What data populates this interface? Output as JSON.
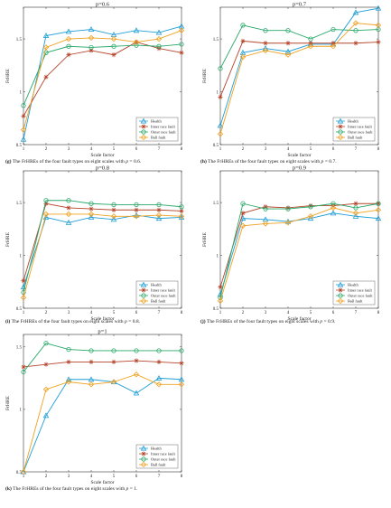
{
  "styles": {
    "colors": {
      "Health": "#1f9ed6",
      "Inner race fault": "#b5442a",
      "Outer race fault": "#2aa86a",
      "Ball fault": "#f0a020"
    },
    "markers": {
      "Health": "triangle",
      "Inner race fault": "star",
      "Outer race fault": "circle",
      "Ball fault": "diamond"
    }
  },
  "chart_data": [
    {
      "id": "g",
      "type": "line",
      "title": "p=0.6",
      "xlabel": "Scale factor",
      "ylabel": "FrHRE",
      "x": [
        1,
        2,
        3,
        4,
        5,
        6,
        7,
        8
      ],
      "xlim": [
        1,
        8
      ],
      "ylim": [
        0.5,
        1.8
      ],
      "yticks": [
        0.5,
        1,
        1.5
      ],
      "ytick_labels": [
        "0.5",
        "1",
        "1.5"
      ],
      "legend": "bottom-right",
      "caption": {
        "letter": "(g)",
        "text": "The FrHREs of the four fault types on eight scales with ",
        "var": "p",
        "value": " = 0.6."
      },
      "series": [
        {
          "name": "Health",
          "values": [
            0.55,
            1.53,
            1.57,
            1.59,
            1.54,
            1.58,
            1.56,
            1.62
          ]
        },
        {
          "name": "Inner race fault",
          "values": [
            0.77,
            1.14,
            1.35,
            1.39,
            1.35,
            1.47,
            1.41,
            1.37
          ]
        },
        {
          "name": "Outer race fault",
          "values": [
            0.87,
            1.37,
            1.43,
            1.42,
            1.43,
            1.44,
            1.43,
            1.45
          ]
        },
        {
          "name": "Ball fault",
          "values": [
            0.64,
            1.42,
            1.5,
            1.51,
            1.5,
            1.47,
            1.5,
            1.58
          ]
        }
      ]
    },
    {
      "id": "h",
      "type": "line",
      "title": "p=0.7",
      "xlabel": "Scale factor",
      "ylabel": "FrHRE",
      "x": [
        1,
        2,
        3,
        4,
        5,
        6,
        7,
        8
      ],
      "xlim": [
        1,
        8
      ],
      "ylim": [
        0.5,
        1.8
      ],
      "yticks": [
        0.5,
        1,
        1.5
      ],
      "ytick_labels": [
        "0.5",
        "1",
        "1.5"
      ],
      "legend": "bottom-right",
      "caption": {
        "letter": "(h)",
        "text": "The FrHREs of the four fault types on eight scales with ",
        "var": "p",
        "value": " = 0.7."
      },
      "series": [
        {
          "name": "Health",
          "values": [
            0.68,
            1.37,
            1.41,
            1.38,
            1.45,
            1.45,
            1.75,
            1.79
          ]
        },
        {
          "name": "Inner race fault",
          "values": [
            0.95,
            1.48,
            1.46,
            1.46,
            1.46,
            1.46,
            1.46,
            1.47
          ]
        },
        {
          "name": "Outer race fault",
          "values": [
            1.22,
            1.63,
            1.58,
            1.58,
            1.5,
            1.59,
            1.58,
            1.59
          ]
        },
        {
          "name": "Ball fault",
          "values": [
            0.6,
            1.33,
            1.39,
            1.35,
            1.43,
            1.43,
            1.65,
            1.63
          ]
        }
      ]
    },
    {
      "id": "i",
      "type": "line",
      "title": "p=0.8",
      "xlabel": "Scale factor",
      "ylabel": "FrHRE",
      "x": [
        1,
        2,
        3,
        4,
        5,
        6,
        7,
        8
      ],
      "xlim": [
        1,
        8
      ],
      "ylim": [
        0.5,
        1.8
      ],
      "yticks": [
        0.5,
        1,
        1.5
      ],
      "ytick_labels": [
        "0.5",
        "1",
        "1.5"
      ],
      "legend": "bottom-right",
      "caption": {
        "letter": "(i)",
        "text": "The FrHREs of the four fault types on eight scales with ",
        "var": "p",
        "value": " = 0.8."
      },
      "series": [
        {
          "name": "Health",
          "values": [
            0.7,
            1.36,
            1.31,
            1.36,
            1.34,
            1.38,
            1.35,
            1.36
          ]
        },
        {
          "name": "Inner race fault",
          "values": [
            0.76,
            1.49,
            1.45,
            1.44,
            1.43,
            1.43,
            1.43,
            1.42
          ]
        },
        {
          "name": "Outer race fault",
          "values": [
            0.65,
            1.52,
            1.52,
            1.49,
            1.48,
            1.48,
            1.48,
            1.46
          ]
        },
        {
          "name": "Ball fault",
          "values": [
            0.6,
            1.39,
            1.39,
            1.39,
            1.37,
            1.37,
            1.38,
            1.37
          ]
        }
      ]
    },
    {
      "id": "j",
      "type": "line",
      "title": "p=0.9",
      "xlabel": "Scale factor",
      "ylabel": "FrHRE",
      "x": [
        1,
        2,
        3,
        4,
        5,
        6,
        7,
        8
      ],
      "xlim": [
        1,
        8
      ],
      "ylim": [
        0.5,
        1.8
      ],
      "yticks": [
        0.5,
        1,
        1.5
      ],
      "ytick_labels": [
        "0.5",
        "1",
        "1.5"
      ],
      "legend": "bottom-right",
      "caption": {
        "letter": "(j)",
        "text": "The FrHREs of the four fault types on eight scales with ",
        "var": "p",
        "value": " = 0.9."
      },
      "series": [
        {
          "name": "Health",
          "values": [
            0.63,
            1.35,
            1.34,
            1.32,
            1.35,
            1.4,
            1.37,
            1.35
          ]
        },
        {
          "name": "Inner race fault",
          "values": [
            0.7,
            1.4,
            1.46,
            1.45,
            1.47,
            1.47,
            1.49,
            1.49
          ]
        },
        {
          "name": "Outer race fault",
          "values": [
            0.6,
            1.49,
            1.44,
            1.44,
            1.46,
            1.49,
            1.45,
            1.49
          ]
        },
        {
          "name": "Ball fault",
          "values": [
            0.57,
            1.28,
            1.3,
            1.31,
            1.37,
            1.45,
            1.4,
            1.43
          ]
        }
      ]
    },
    {
      "id": "k",
      "type": "line",
      "title": "p=1",
      "xlabel": "Scale factor",
      "ylabel": "FrHRE",
      "x": [
        1,
        2,
        3,
        4,
        5,
        6,
        7,
        8
      ],
      "xlim": [
        1,
        8
      ],
      "ylim": [
        0.5,
        1.6
      ],
      "yticks": [
        0.5,
        1,
        1.5
      ],
      "ytick_labels": [
        "0.5",
        "1",
        "1.5"
      ],
      "legend": "bottom-right",
      "caption": {
        "letter": "(k)",
        "text": "The FrHREs of the four fault types on eight scales with ",
        "var": "p",
        "value": " = 1."
      },
      "series": [
        {
          "name": "Health",
          "values": [
            0.5,
            0.95,
            1.24,
            1.24,
            1.22,
            1.13,
            1.25,
            1.24
          ]
        },
        {
          "name": "Inner race fault",
          "values": [
            1.34,
            1.36,
            1.38,
            1.38,
            1.38,
            1.39,
            1.38,
            1.37
          ]
        },
        {
          "name": "Outer race fault",
          "values": [
            1.3,
            1.53,
            1.48,
            1.47,
            1.47,
            1.47,
            1.47,
            1.47
          ]
        },
        {
          "name": "Ball fault",
          "values": [
            0.5,
            1.16,
            1.22,
            1.2,
            1.22,
            1.28,
            1.2,
            1.2
          ]
        }
      ]
    }
  ]
}
